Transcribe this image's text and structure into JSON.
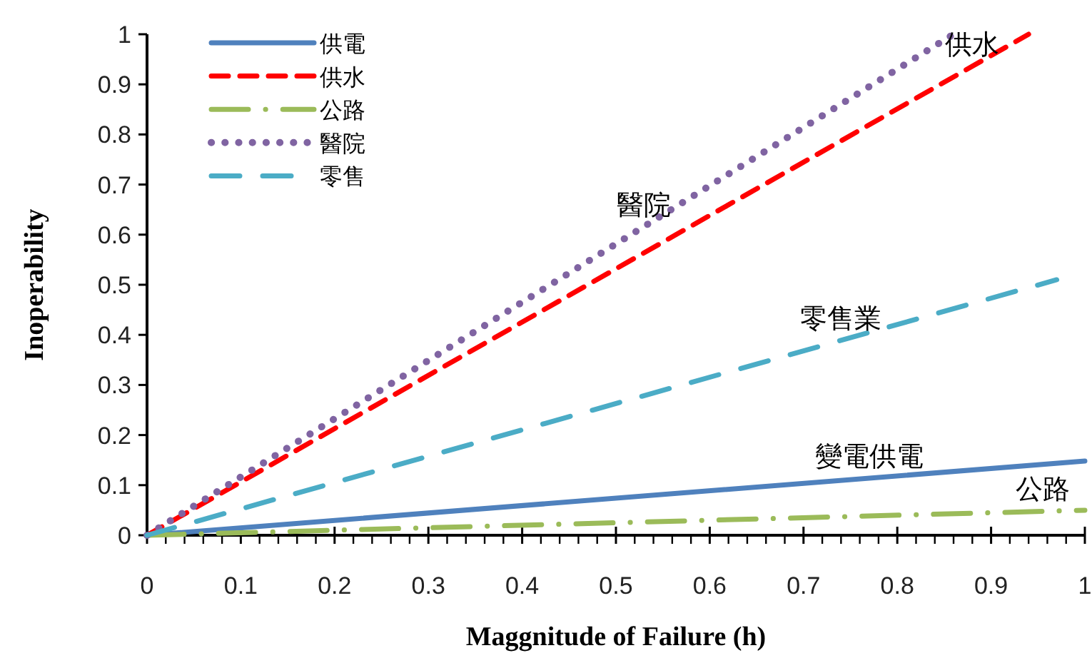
{
  "chart_data": {
    "type": "line",
    "xlabel": "Maggnitude of Failure (h)",
    "ylabel": "Inoperability",
    "xlim": [
      0,
      1
    ],
    "ylim": [
      0,
      1
    ],
    "xticks": [
      0,
      0.1,
      0.2,
      0.3,
      0.4,
      0.5,
      0.6,
      0.7,
      0.8,
      0.9,
      1
    ],
    "yticks": [
      0,
      0.1,
      0.2,
      0.3,
      0.4,
      0.5,
      0.6,
      0.7,
      0.8,
      0.9,
      1
    ],
    "grid": false,
    "legend": "top left",
    "marker": "none",
    "series": [
      {
        "name": "供電",
        "color": "#4f81bd",
        "line_style": "solid",
        "x": [
          0,
          1
        ],
        "values": [
          0,
          0.148
        ]
      },
      {
        "name": "供水",
        "color": "#ff0000",
        "line_style": "dashed",
        "x": [
          0,
          0.94
        ],
        "values": [
          0,
          1
        ]
      },
      {
        "name": "公路",
        "color": "#9bbb59",
        "line_style": "dashdot",
        "x": [
          0,
          1
        ],
        "values": [
          0,
          0.05
        ]
      },
      {
        "name": "醫院",
        "color": "#8064a2",
        "line_style": "dotted",
        "x": [
          0,
          0.86
        ],
        "values": [
          0,
          1
        ]
      },
      {
        "name": "零售",
        "color": "#4bacc6",
        "line_style": "longdash",
        "x": [
          0,
          0.97
        ],
        "values": [
          0,
          0.51
        ]
      }
    ],
    "annotations": [
      {
        "text": "醫院",
        "x": 0.53,
        "y": 0.616
      },
      {
        "text": "供水",
        "x": 0.88,
        "y": 0.936
      },
      {
        "text": "零售業",
        "x": 0.74,
        "y": 0.389
      },
      {
        "text": "變電供電",
        "x": 0.77,
        "y": 0.114
      },
      {
        "text": "公路",
        "x": 0.955,
        "y": 0.048
      }
    ]
  }
}
